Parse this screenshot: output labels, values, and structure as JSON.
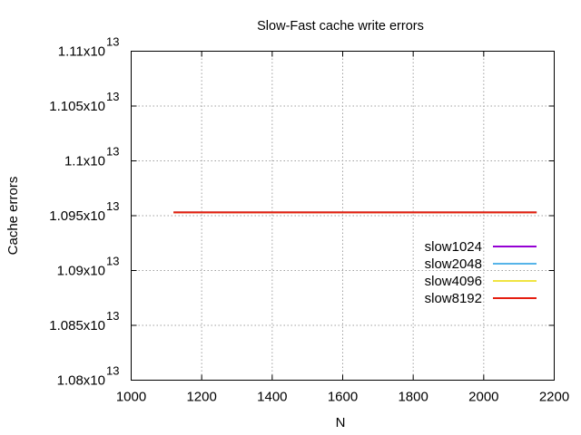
{
  "chart_data": {
    "type": "line",
    "title": "Slow-Fast cache write errors",
    "xlabel": "N",
    "ylabel": "Cache errors",
    "xlim": [
      1000,
      2200
    ],
    "ylim": [
      10800000000000.0,
      11100000000000.0
    ],
    "x_ticks": [
      1000,
      1200,
      1400,
      1600,
      1800,
      2000,
      2200
    ],
    "y_ticks": [
      {
        "value": 10800000000000.0,
        "mantissa": "1.08x10",
        "exponent": "13"
      },
      {
        "value": 10850000000000.0,
        "mantissa": "1.085x10",
        "exponent": "13"
      },
      {
        "value": 10900000000000.0,
        "mantissa": "1.09x10",
        "exponent": "13"
      },
      {
        "value": 10950000000000.0,
        "mantissa": "1.095x10",
        "exponent": "13"
      },
      {
        "value": 11000000000000.0,
        "mantissa": "1.1x10",
        "exponent": "13"
      },
      {
        "value": 11050000000000.0,
        "mantissa": "1.105x10",
        "exponent": "13"
      },
      {
        "value": 11100000000000.0,
        "mantissa": "1.11x10",
        "exponent": "13"
      }
    ],
    "grid": true,
    "legend_position": "right",
    "series": [
      {
        "name": "slow1024",
        "color": "#9400d3",
        "x": [
          1120,
          2150
        ],
        "y": [
          10953000000000.0,
          10953000000000.0
        ]
      },
      {
        "name": "slow2048",
        "color": "#56b4e9",
        "x": [
          1120,
          2150
        ],
        "y": [
          10953000000000.0,
          10953000000000.0
        ]
      },
      {
        "name": "slow4096",
        "color": "#f0e442",
        "x": [
          1120,
          2150
        ],
        "y": [
          10953000000000.0,
          10953000000000.0
        ]
      },
      {
        "name": "slow8192",
        "color": "#e51e10",
        "x": [
          1120,
          2150
        ],
        "y": [
          10953000000000.0,
          10953000000000.0
        ]
      }
    ]
  }
}
